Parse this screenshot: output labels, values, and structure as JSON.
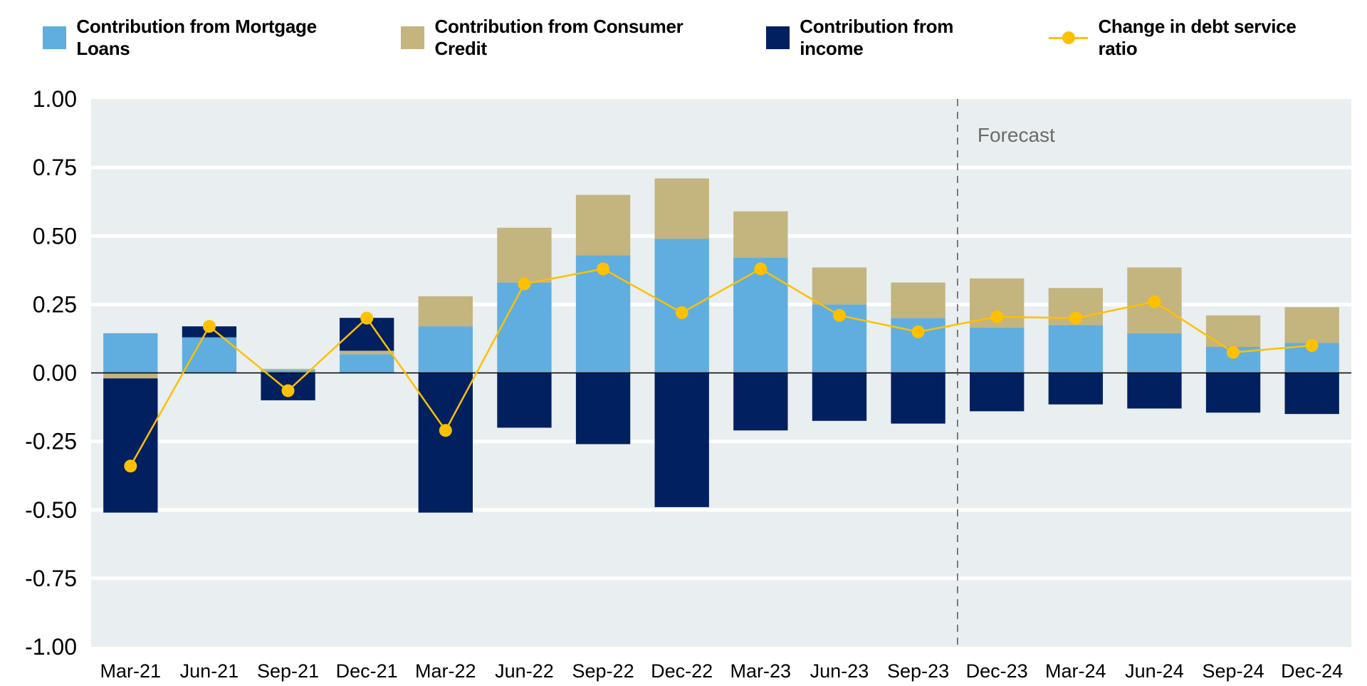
{
  "chart_data": {
    "type": "bar",
    "subtype": "stacked-bar-with-line",
    "title": "",
    "xlabel": "",
    "ylabel": "",
    "ylim": [
      -1.0,
      1.0
    ],
    "yticks": [
      "1.00",
      "0.75",
      "0.50",
      "0.25",
      "0.00",
      "-0.25",
      "-0.50",
      "-0.75",
      "-1.00"
    ],
    "ytick_values": [
      1.0,
      0.75,
      0.5,
      0.25,
      0.0,
      -0.25,
      -0.5,
      -0.75,
      -1.0
    ],
    "grid": true,
    "legend_position": "top",
    "categories": [
      "Mar-21",
      "Jun-21",
      "Sep-21",
      "Dec-21",
      "Mar-22",
      "Jun-22",
      "Sep-22",
      "Dec-22",
      "Mar-23",
      "Jun-23",
      "Sep-23",
      "Dec-23",
      "Mar-24",
      "Jun-24",
      "Sep-24",
      "Dec-24"
    ],
    "series": [
      {
        "name": "Contribution from Mortgage Loans",
        "kind": "bar",
        "color": "#5FAEDF",
        "values": [
          0.145,
          0.13,
          0.01,
          0.068,
          0.17,
          0.33,
          0.43,
          0.49,
          0.42,
          0.25,
          0.2,
          0.165,
          0.175,
          0.145,
          0.095,
          0.11
        ]
      },
      {
        "name": "Contribution from Consumer Credit",
        "kind": "bar",
        "color": "#C4B47E",
        "values": [
          -0.02,
          0.0,
          0.005,
          0.013,
          0.11,
          0.2,
          0.22,
          0.22,
          0.17,
          0.135,
          0.13,
          0.18,
          0.135,
          0.24,
          0.115,
          0.13
        ]
      },
      {
        "name": "Contribution from income",
        "kind": "bar",
        "color": "#00205F",
        "values": [
          -0.49,
          0.04,
          -0.1,
          0.12,
          -0.51,
          -0.2,
          -0.26,
          -0.49,
          -0.21,
          -0.175,
          -0.185,
          -0.14,
          -0.115,
          -0.13,
          -0.145,
          -0.15
        ]
      },
      {
        "name": "Change in debt service ratio",
        "kind": "line",
        "color": "#FFC000",
        "values": [
          -0.34,
          0.17,
          -0.065,
          0.2,
          -0.21,
          0.325,
          0.38,
          0.22,
          0.38,
          0.21,
          0.15,
          0.205,
          0.2,
          0.26,
          0.075,
          0.1
        ]
      }
    ],
    "annotations": [
      {
        "text": "Forecast",
        "type": "vertical-dashed-divider",
        "between": [
          "Sep-23",
          "Dec-23"
        ]
      }
    ]
  },
  "legend": {
    "items": [
      {
        "label": "Contribution from Mortgage Loans",
        "color": "#5FAEDF"
      },
      {
        "label": "Contribution from Consumer Credit",
        "color": "#C4B47E"
      },
      {
        "label": "Contribution from income",
        "color": "#00205F"
      },
      {
        "label": "Change in debt service ratio",
        "color": "#FFC000"
      }
    ]
  },
  "colors": {
    "plot_background": "#E9EEF1",
    "gridline": "#FFFFFF",
    "zero_line": "#000000",
    "forecast_divider": "#555555",
    "annotation_text": "#6B6B6B"
  }
}
